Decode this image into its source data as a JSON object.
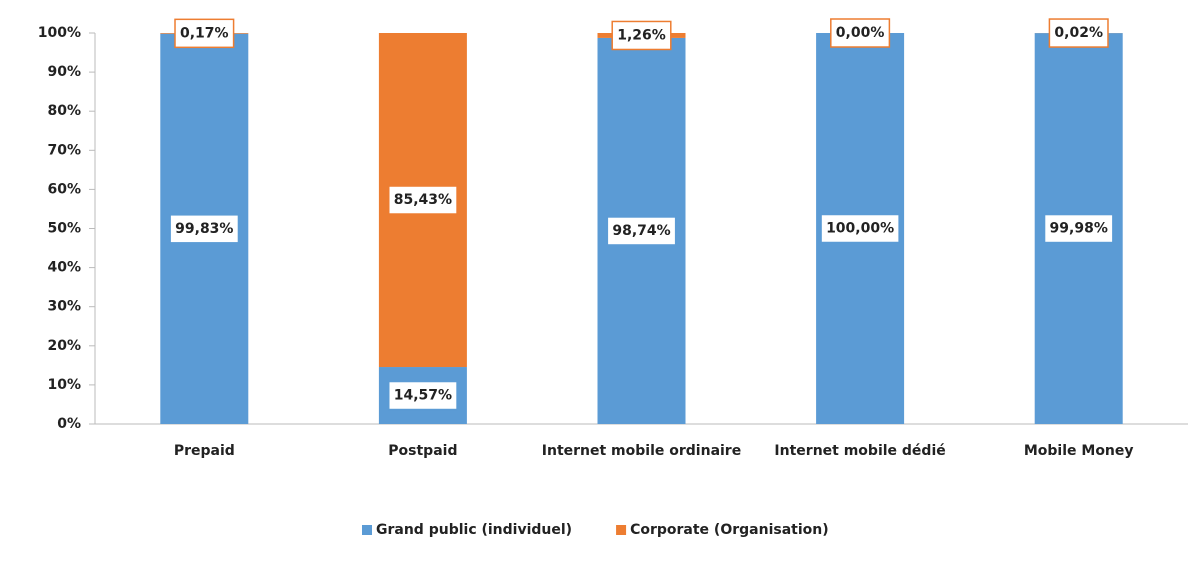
{
  "chart_data": {
    "type": "stacked_bar",
    "categories": [
      "Prepaid",
      "Postpaid",
      "Internet mobile ordinaire",
      "Internet mobile dédié",
      "Mobile Money"
    ],
    "series": [
      {
        "name": "Grand public (individuel)",
        "color": "#5b9bd5",
        "values": [
          99.83,
          14.57,
          98.74,
          100,
          99.98
        ],
        "value_labels": [
          "99,83%",
          "14,57%",
          "98,74%",
          "100,00%",
          "99,98%"
        ]
      },
      {
        "name": "Corporate (Organisation)",
        "color": "#ed7d31",
        "values": [
          0.17,
          85.43,
          1.26,
          0,
          0.02
        ],
        "value_labels": [
          "0,17%",
          "85,43%",
          "1,26%",
          "0,00%",
          "0,02%"
        ]
      }
    ],
    "ylim": [
      0,
      100
    ],
    "yticks": [
      {
        "value": 0,
        "label": "0%"
      },
      {
        "value": 10,
        "label": "10%"
      },
      {
        "value": 20,
        "label": "20%"
      },
      {
        "value": 30,
        "label": "30%"
      },
      {
        "value": 40,
        "label": "40%"
      },
      {
        "value": 50,
        "label": "50%"
      },
      {
        "value": 60,
        "label": "60%"
      },
      {
        "value": 70,
        "label": "70%"
      },
      {
        "value": 80,
        "label": "80%"
      },
      {
        "value": 90,
        "label": "90%"
      },
      {
        "value": 100,
        "label": "100%"
      }
    ],
    "legend": "bottom"
  }
}
